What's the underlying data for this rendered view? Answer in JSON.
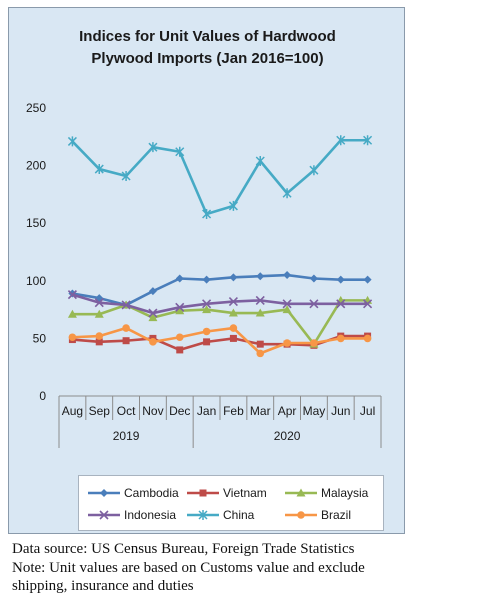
{
  "chart_data": {
    "type": "line",
    "title_line1": "Indices for Unit Values of Hardwood",
    "title_line2": "Plywood Imports (Jan 2016=100)",
    "categories": [
      "Aug",
      "Sep",
      "Oct",
      "Nov",
      "Dec",
      "Jan",
      "Feb",
      "Mar",
      "Apr",
      "May",
      "Jun",
      "Jul"
    ],
    "years": [
      {
        "label": "2019",
        "start": 0,
        "end": 4
      },
      {
        "label": "2020",
        "start": 5,
        "end": 11
      }
    ],
    "ylim": [
      0,
      250
    ],
    "yticks": [
      0,
      50,
      100,
      150,
      200,
      250
    ],
    "grid": false,
    "legend_position": "bottom",
    "series": [
      {
        "name": "Cambodia",
        "color": "#4a7ebb",
        "marker": "diamond",
        "values": [
          89,
          85,
          79,
          91,
          102,
          101,
          103,
          104,
          105,
          102,
          101,
          101
        ]
      },
      {
        "name": "Vietnam",
        "color": "#be4b48",
        "marker": "square",
        "values": [
          49,
          47,
          48,
          50,
          40,
          47,
          50,
          45,
          45,
          44,
          52,
          52
        ]
      },
      {
        "name": "Malaysia",
        "color": "#98b954",
        "marker": "triangle",
        "values": [
          71,
          71,
          79,
          68,
          74,
          75,
          72,
          72,
          75,
          45,
          83,
          83
        ]
      },
      {
        "name": "Indonesia",
        "color": "#7d60a0",
        "marker": "x",
        "values": [
          88,
          81,
          79,
          72,
          77,
          80,
          82,
          83,
          80,
          80,
          80,
          80
        ]
      },
      {
        "name": "China",
        "color": "#46aac5",
        "marker": "star",
        "values": [
          221,
          197,
          191,
          216,
          212,
          158,
          165,
          204,
          176,
          196,
          222,
          222
        ]
      },
      {
        "name": "Brazil",
        "color": "#f79646",
        "marker": "circle",
        "values": [
          51,
          52,
          59,
          47,
          51,
          56,
          59,
          37,
          46,
          46,
          50,
          50
        ]
      }
    ]
  },
  "notes": {
    "source": "Data source: US Census Bureau, Foreign Trade Statistics",
    "note_line1": "Note: Unit values are based on Customs value and exclude",
    "note_line2": "shipping, insurance and duties"
  }
}
